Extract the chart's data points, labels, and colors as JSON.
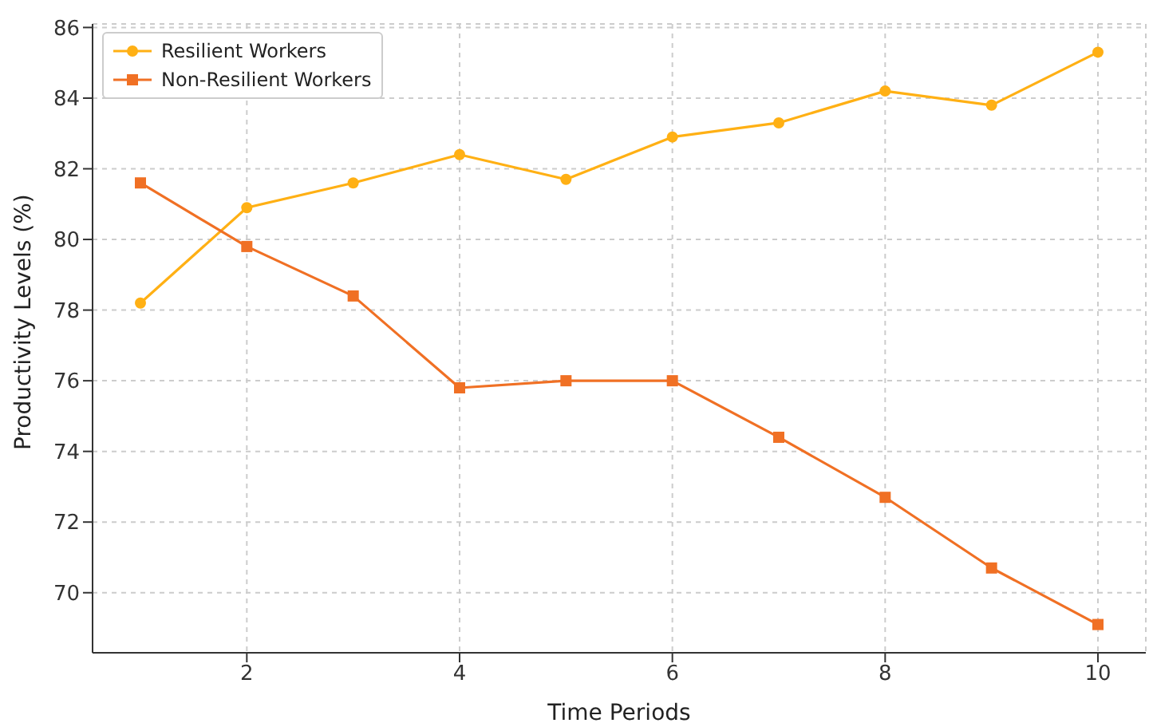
{
  "chart_data": {
    "type": "line",
    "xlabel": "Time Periods",
    "ylabel": "Productivity Levels (%)",
    "x": [
      1,
      2,
      3,
      4,
      5,
      6,
      7,
      8,
      9,
      10
    ],
    "series": [
      {
        "name": "Resilient Workers",
        "color": "#ffb014",
        "marker": "circle",
        "values": [
          78.2,
          80.9,
          81.6,
          82.4,
          81.7,
          82.9,
          83.3,
          84.2,
          83.8,
          85.3
        ]
      },
      {
        "name": "Non-Resilient Workers",
        "color": "#f07024",
        "marker": "square",
        "values": [
          81.6,
          79.8,
          78.4,
          75.8,
          76.0,
          76.0,
          74.4,
          72.7,
          70.7,
          69.1
        ]
      }
    ],
    "xlim": [
      0.55,
      10.45
    ],
    "xticks": [
      2,
      4,
      6,
      8,
      10
    ],
    "ylim": [
      68.3,
      86.1
    ],
    "yticks": [
      70,
      72,
      74,
      76,
      78,
      80,
      82,
      84,
      86
    ],
    "grid": true,
    "legend": "top left",
    "line_style": "solid"
  }
}
